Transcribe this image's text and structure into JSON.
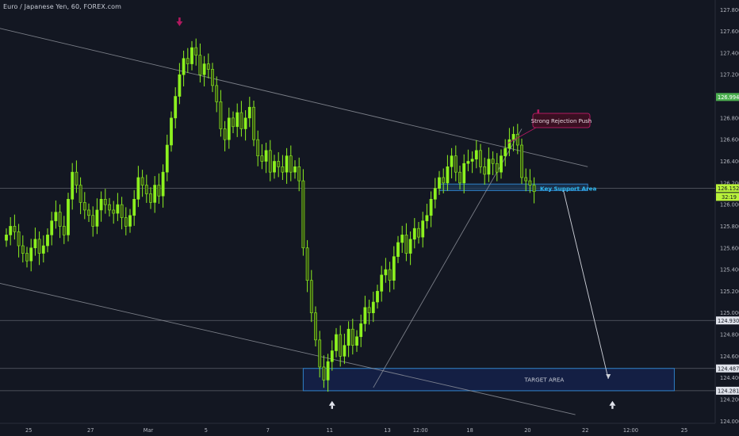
{
  "title": "Euro / Japanese Yen, 60, FOREX.com",
  "colors": {
    "background": "#131722",
    "candle": "#8cf11f",
    "candle_dark": "#3b5a12",
    "trendline": "#9598a1",
    "hline": "#5d606b",
    "box_fill": "#152048",
    "box_stroke": "#2e80c8",
    "support_fill": "#1d3a5a",
    "label_green": "#4caf50",
    "label_green_bright": "#b9f23a",
    "label_dark": "#e0e3eb",
    "arrow_red": "#b0195f",
    "callout_fill": "#3a0f22",
    "callout_stroke": "#b0195f",
    "support_text": "#2fb8f0",
    "axis_text": "#b2b5be"
  },
  "chart_data": {
    "type": "candlestick",
    "symbol": "Euro / Japanese Yen",
    "interval": "60",
    "source": "FOREX.com",
    "ylim": [
      124.0,
      127.8
    ],
    "y_ticks": [
      "127.800",
      "127.600",
      "127.400",
      "127.200",
      "127.000",
      "126.800",
      "126.600",
      "126.400",
      "126.200",
      "126.000",
      "125.800",
      "125.600",
      "125.400",
      "125.200",
      "125.000",
      "124.800",
      "124.600",
      "124.400",
      "124.200",
      "124.000"
    ],
    "x_ticks": [
      "25",
      "27",
      "Mar",
      "5",
      "7",
      "11",
      "13",
      "12:00",
      "18",
      "20",
      "22",
      "12:00",
      "25"
    ],
    "x_tick_bar_index": [
      6,
      21,
      35,
      49,
      64,
      79,
      93,
      101,
      113,
      127,
      141,
      152,
      165
    ],
    "bar_count": 170,
    "closes": [
      125.72,
      125.8,
      125.75,
      125.62,
      125.55,
      125.48,
      125.6,
      125.68,
      125.55,
      125.62,
      125.72,
      125.85,
      125.93,
      125.8,
      125.72,
      126.05,
      126.3,
      126.18,
      126.02,
      125.95,
      125.9,
      125.8,
      125.95,
      126.05,
      126.0,
      125.95,
      125.92,
      126.0,
      125.88,
      125.8,
      125.9,
      126.05,
      126.25,
      126.18,
      126.1,
      126.02,
      126.18,
      126.08,
      126.3,
      126.55,
      126.8,
      127.0,
      127.2,
      127.35,
      127.3,
      127.45,
      127.38,
      127.2,
      127.3,
      127.25,
      127.1,
      126.95,
      126.7,
      126.6,
      126.8,
      126.72,
      126.85,
      126.7,
      126.8,
      126.9,
      126.6,
      126.45,
      126.4,
      126.5,
      126.3,
      126.4,
      126.35,
      126.3,
      126.45,
      126.3,
      126.35,
      126.22,
      125.6,
      125.3,
      125.0,
      124.75,
      124.5,
      124.38,
      124.55,
      124.65,
      124.8,
      124.6,
      124.7,
      124.85,
      124.7,
      124.78,
      124.9,
      125.05,
      125.0,
      125.1,
      125.2,
      125.35,
      125.4,
      125.3,
      125.52,
      125.65,
      125.72,
      125.55,
      125.68,
      125.78,
      125.7,
      125.85,
      125.9,
      126.05,
      126.15,
      126.25,
      126.2,
      126.35,
      126.45,
      126.3,
      126.2,
      126.38,
      126.4,
      126.42,
      126.5,
      126.35,
      126.28,
      126.42,
      126.38,
      126.3,
      126.45,
      126.52,
      126.6,
      126.65,
      126.55,
      126.25,
      126.22,
      126.18,
      126.12
    ],
    "visible_closes_note_only_for_draw": "",
    "current_price": 126.152,
    "countdown": "32:19",
    "price_labels": [
      {
        "value": 126.994,
        "text": "126.994",
        "style": "green"
      },
      {
        "value": 126.152,
        "text": "126.152",
        "style": "green_bright"
      },
      {
        "value": 124.93,
        "text": "124.930",
        "style": "dark"
      },
      {
        "value": 124.487,
        "text": "124.487",
        "style": "dark"
      },
      {
        "value": 124.281,
        "text": "124.281",
        "style": "dark"
      }
    ],
    "horizontal_lines": [
      126.152,
      124.93,
      124.487,
      124.281
    ],
    "trendlines": [
      {
        "from": [
          -4,
          127.65
        ],
        "to": [
          141,
          126.35
        ]
      },
      {
        "from": [
          -7,
          125.32
        ],
        "to": [
          138,
          124.06
        ]
      },
      {
        "from": [
          89,
          124.31
        ],
        "to": [
          125,
          126.7
        ]
      }
    ],
    "boxes": [
      {
        "name": "key-support",
        "x": [
          105,
          141
        ],
        "y": [
          126.13,
          126.19
        ],
        "label": "Key Support Area"
      },
      {
        "name": "target",
        "x": [
          72,
          162
        ],
        "y": [
          124.281,
          124.487
        ],
        "label": "TARGET AREA"
      }
    ],
    "annotations": {
      "callout": "Strong Rejection Push",
      "support_label": "Key Support Area",
      "target_label": "TARGET AREA"
    },
    "projection_arrow": {
      "from": [
        135,
        126.15
      ],
      "to": [
        146,
        124.39
      ]
    },
    "markers": [
      {
        "type": "down-arrow",
        "x": 42,
        "y": 127.67
      },
      {
        "type": "down-arrow",
        "x": 129,
        "y": 126.82
      },
      {
        "type": "up-arrow",
        "x": 79,
        "y": 124.15
      },
      {
        "type": "up-arrow",
        "x": 147,
        "y": 124.15
      }
    ]
  }
}
